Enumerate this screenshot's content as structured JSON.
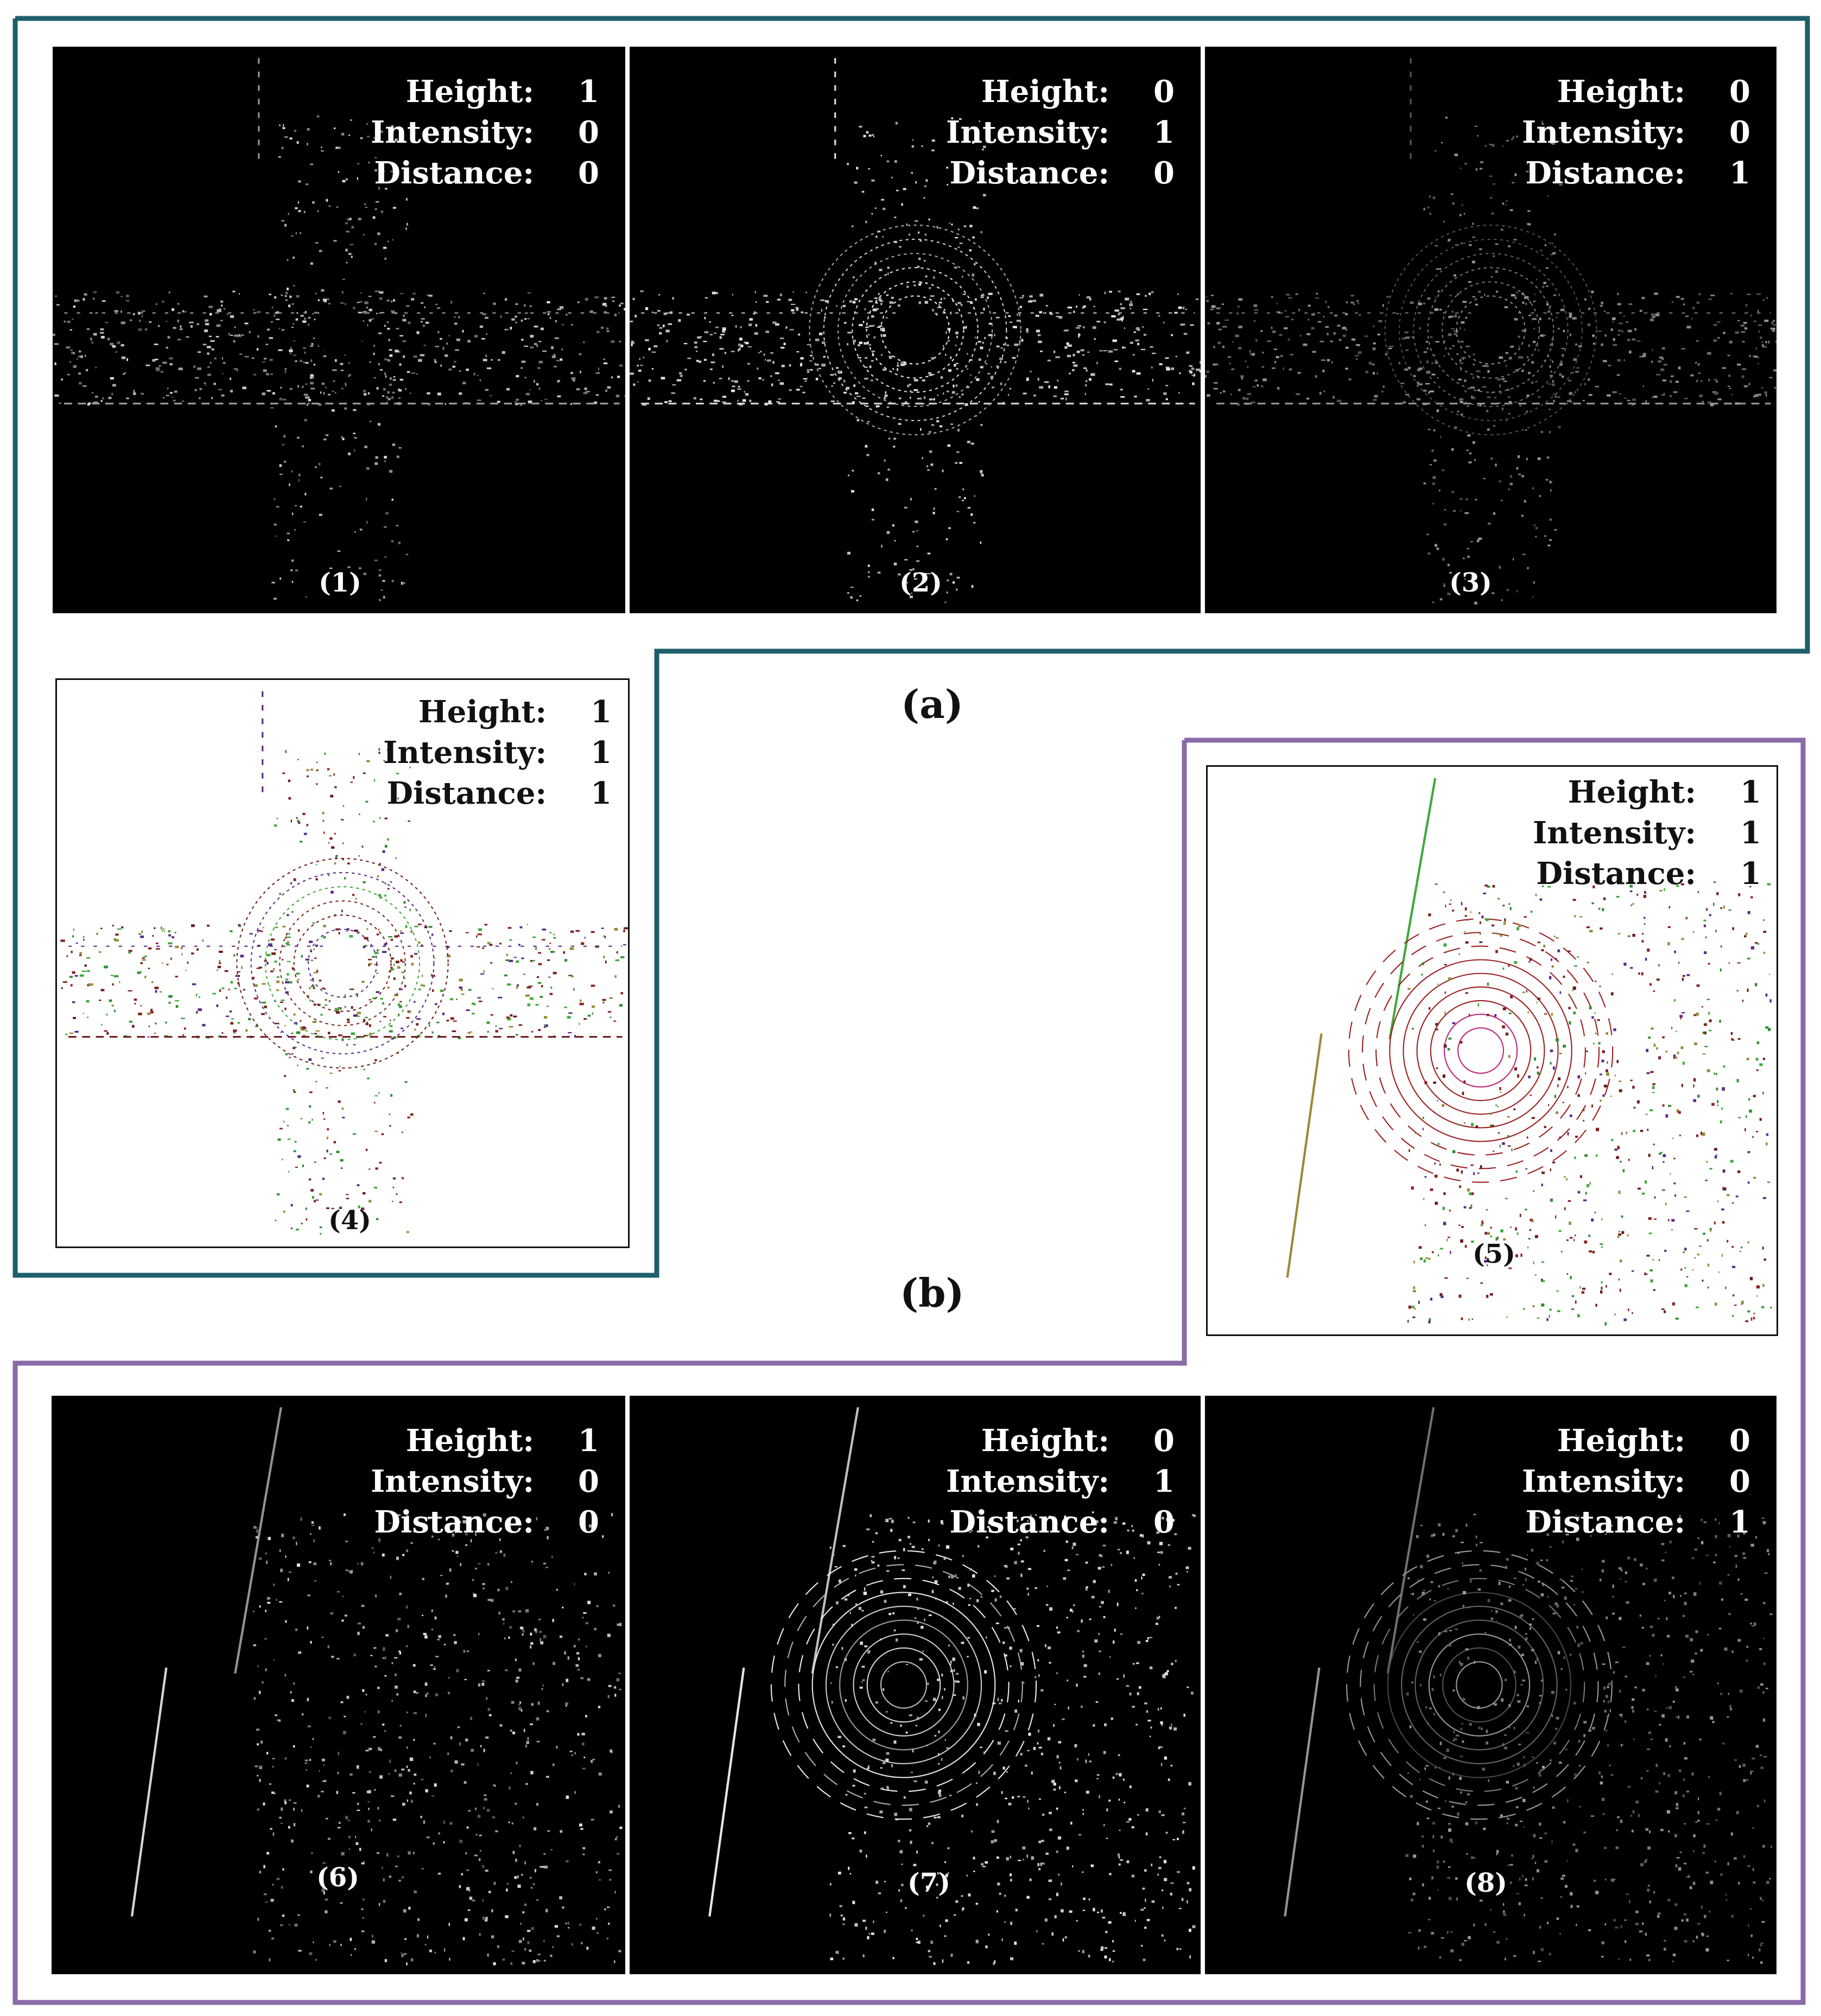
{
  "colors": {
    "group_a_border": "#1f5f6b",
    "group_b_border": "#8a6aa8",
    "panel_dark_bg": "#000000",
    "panel_light_bg": "#ffffff"
  },
  "legend_labels": {
    "height": "Height:",
    "intensity": "Intensity:",
    "distance": "Distance:"
  },
  "group_labels": {
    "a": "(a)",
    "b": "(b)"
  },
  "panels": [
    {
      "label": "(1)",
      "height": "1",
      "intensity": "0",
      "distance": "0",
      "style": "dark",
      "scene": "intersection",
      "tone": "height-gray"
    },
    {
      "label": "(2)",
      "height": "0",
      "intensity": "1",
      "distance": "0",
      "style": "dark",
      "scene": "intersection",
      "tone": "intensity-gray"
    },
    {
      "label": "(3)",
      "height": "0",
      "intensity": "0",
      "distance": "1",
      "style": "dark",
      "scene": "intersection",
      "tone": "distance-gray"
    },
    {
      "label": "(4)",
      "height": "1",
      "intensity": "1",
      "distance": "1",
      "style": "light",
      "scene": "intersection",
      "tone": "color"
    },
    {
      "label": "(5)",
      "height": "1",
      "intensity": "1",
      "distance": "1",
      "style": "light",
      "scene": "corner",
      "tone": "color"
    },
    {
      "label": "(6)",
      "height": "1",
      "intensity": "0",
      "distance": "0",
      "style": "dark",
      "scene": "corner",
      "tone": "height-gray"
    },
    {
      "label": "(7)",
      "height": "0",
      "intensity": "1",
      "distance": "0",
      "style": "dark",
      "scene": "corner",
      "tone": "intensity-gray"
    },
    {
      "label": "(8)",
      "height": "0",
      "intensity": "0",
      "distance": "1",
      "style": "dark",
      "scene": "corner",
      "tone": "distance-gray"
    }
  ]
}
